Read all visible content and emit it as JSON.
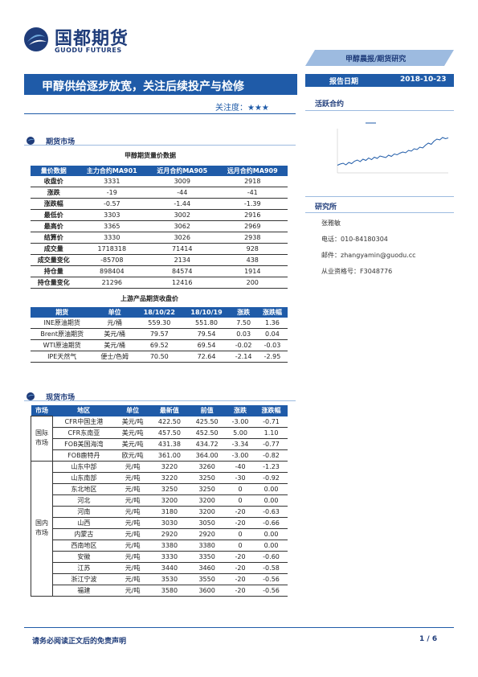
{
  "header": {
    "logo_cn": "国都期货",
    "logo_en": "GUODU FUTURES",
    "category": "甲醇晨报/期货研究",
    "report_date_label": "报告日期",
    "report_date": "2018-10-23"
  },
  "title": {
    "headline": "甲醇供给逐步放宽，关注后续投产与检修",
    "attention_label": "关注度：",
    "attention_stars": "★★★"
  },
  "futures_section": {
    "title": "期货市场",
    "table1_title": "甲醇期货量价数据",
    "table1_headers": [
      "量价数据",
      "主力合约MA901",
      "近月合约MA905",
      "远月合约MA909"
    ],
    "table1_rows": [
      [
        "收盘价",
        "3331",
        "3009",
        "2918"
      ],
      [
        "涨跌",
        "-19",
        "-44",
        "-41"
      ],
      [
        "涨跌幅",
        "-0.57",
        "-1.44",
        "-1.39"
      ],
      [
        "最低价",
        "3303",
        "3002",
        "2916"
      ],
      [
        "最高价",
        "3365",
        "3062",
        "2969"
      ],
      [
        "结算价",
        "3330",
        "3026",
        "2938"
      ],
      [
        "成交量",
        "1718318",
        "71414",
        "928"
      ],
      [
        "成交量变化",
        "-85708",
        "2134",
        "438"
      ],
      [
        "持仓量",
        "898404",
        "84574",
        "1914"
      ],
      [
        "持仓量变化",
        "21296",
        "12416",
        "200"
      ]
    ],
    "table2_title": "上游产品期货收盘价",
    "table2_headers": [
      "期货",
      "单位",
      "18/10/22",
      "18/10/19",
      "涨跌",
      "涨跌幅"
    ],
    "table2_rows": [
      [
        "INE原油期货",
        "元/桶",
        "559.30",
        "551.80",
        "7.50",
        "1.36"
      ],
      [
        "Brent原油期货",
        "美元/桶",
        "79.57",
        "79.54",
        "0.03",
        "0.04"
      ],
      [
        "WTI原油期货",
        "美元/桶",
        "69.52",
        "69.54",
        "-0.02",
        "-0.03"
      ],
      [
        "IPE天然气",
        "便士/色姆",
        "70.50",
        "72.64",
        "-2.14",
        "-2.95"
      ]
    ]
  },
  "spot_section": {
    "title": "现货市场",
    "table3_headers": [
      "市场",
      "地区",
      "单位",
      "最新值",
      "前值",
      "涨跌",
      "涨跌幅"
    ],
    "intl_label": "国际市场",
    "domestic_label": "国内市场",
    "intl_rows": [
      [
        "CFR中国主港",
        "美元/吨",
        "422.50",
        "425.50",
        "-3.00",
        "-0.71"
      ],
      [
        "CFR东南亚",
        "美元/吨",
        "457.50",
        "452.50",
        "5.00",
        "1.10"
      ],
      [
        "FOB美国海湾",
        "美元/吨",
        "431.38",
        "434.72",
        "-3.34",
        "-0.77"
      ],
      [
        "FOB鹿特丹",
        "欧元/吨",
        "361.00",
        "364.00",
        "-3.00",
        "-0.82"
      ]
    ],
    "domestic_rows": [
      [
        "山东中部",
        "元/吨",
        "3220",
        "3260",
        "-40",
        "-1.23"
      ],
      [
        "山东南部",
        "元/吨",
        "3220",
        "3250",
        "-30",
        "-0.92"
      ],
      [
        "东北地区",
        "元/吨",
        "3250",
        "3250",
        "0",
        "0.00"
      ],
      [
        "河北",
        "元/吨",
        "3200",
        "3200",
        "0",
        "0.00"
      ],
      [
        "河南",
        "元/吨",
        "3180",
        "3200",
        "-20",
        "-0.63"
      ],
      [
        "山西",
        "元/吨",
        "3030",
        "3050",
        "-20",
        "-0.66"
      ],
      [
        "内蒙古",
        "元/吨",
        "2920",
        "2920",
        "0",
        "0.00"
      ],
      [
        "西南地区",
        "元/吨",
        "3380",
        "3380",
        "0",
        "0.00"
      ],
      [
        "安徽",
        "元/吨",
        "3330",
        "3350",
        "-20",
        "-0.60"
      ],
      [
        "江苏",
        "元/吨",
        "3440",
        "3460",
        "-20",
        "-0.58"
      ],
      [
        "浙江宁波",
        "元/吨",
        "3530",
        "3550",
        "-20",
        "-0.56"
      ],
      [
        "福建",
        "元/吨",
        "3580",
        "3600",
        "-20",
        "-0.56"
      ]
    ]
  },
  "sidebar": {
    "active_contract_title": "活跃合约",
    "institute_title": "研究所",
    "analyst": "张雅敏",
    "phone": "电话：010-84180304",
    "email": "邮件：zhangyamin@guodu.cc",
    "license": "从业资格号：F3048776",
    "line_color": "#1f5ba8"
  },
  "footer": {
    "disclaimer": "请务必阅读正文后的免责声明",
    "page": "1 / 6"
  },
  "chart_data": {
    "type": "line",
    "title": "",
    "xlabel": "",
    "ylabel": "",
    "series": [
      {
        "values": [
          2650,
          2680,
          2700,
          2660,
          2720,
          2690,
          2750,
          2780,
          2740,
          2800,
          2770,
          2830,
          2790,
          2850,
          2820,
          2880,
          2860,
          2840,
          2900,
          2870,
          2930,
          2910,
          2950,
          2980,
          2960,
          3020,
          3000,
          3060,
          3040,
          3100,
          3080,
          3150,
          3200,
          3170,
          3250,
          3300,
          3280,
          3340,
          3310,
          3331
        ]
      }
    ]
  }
}
